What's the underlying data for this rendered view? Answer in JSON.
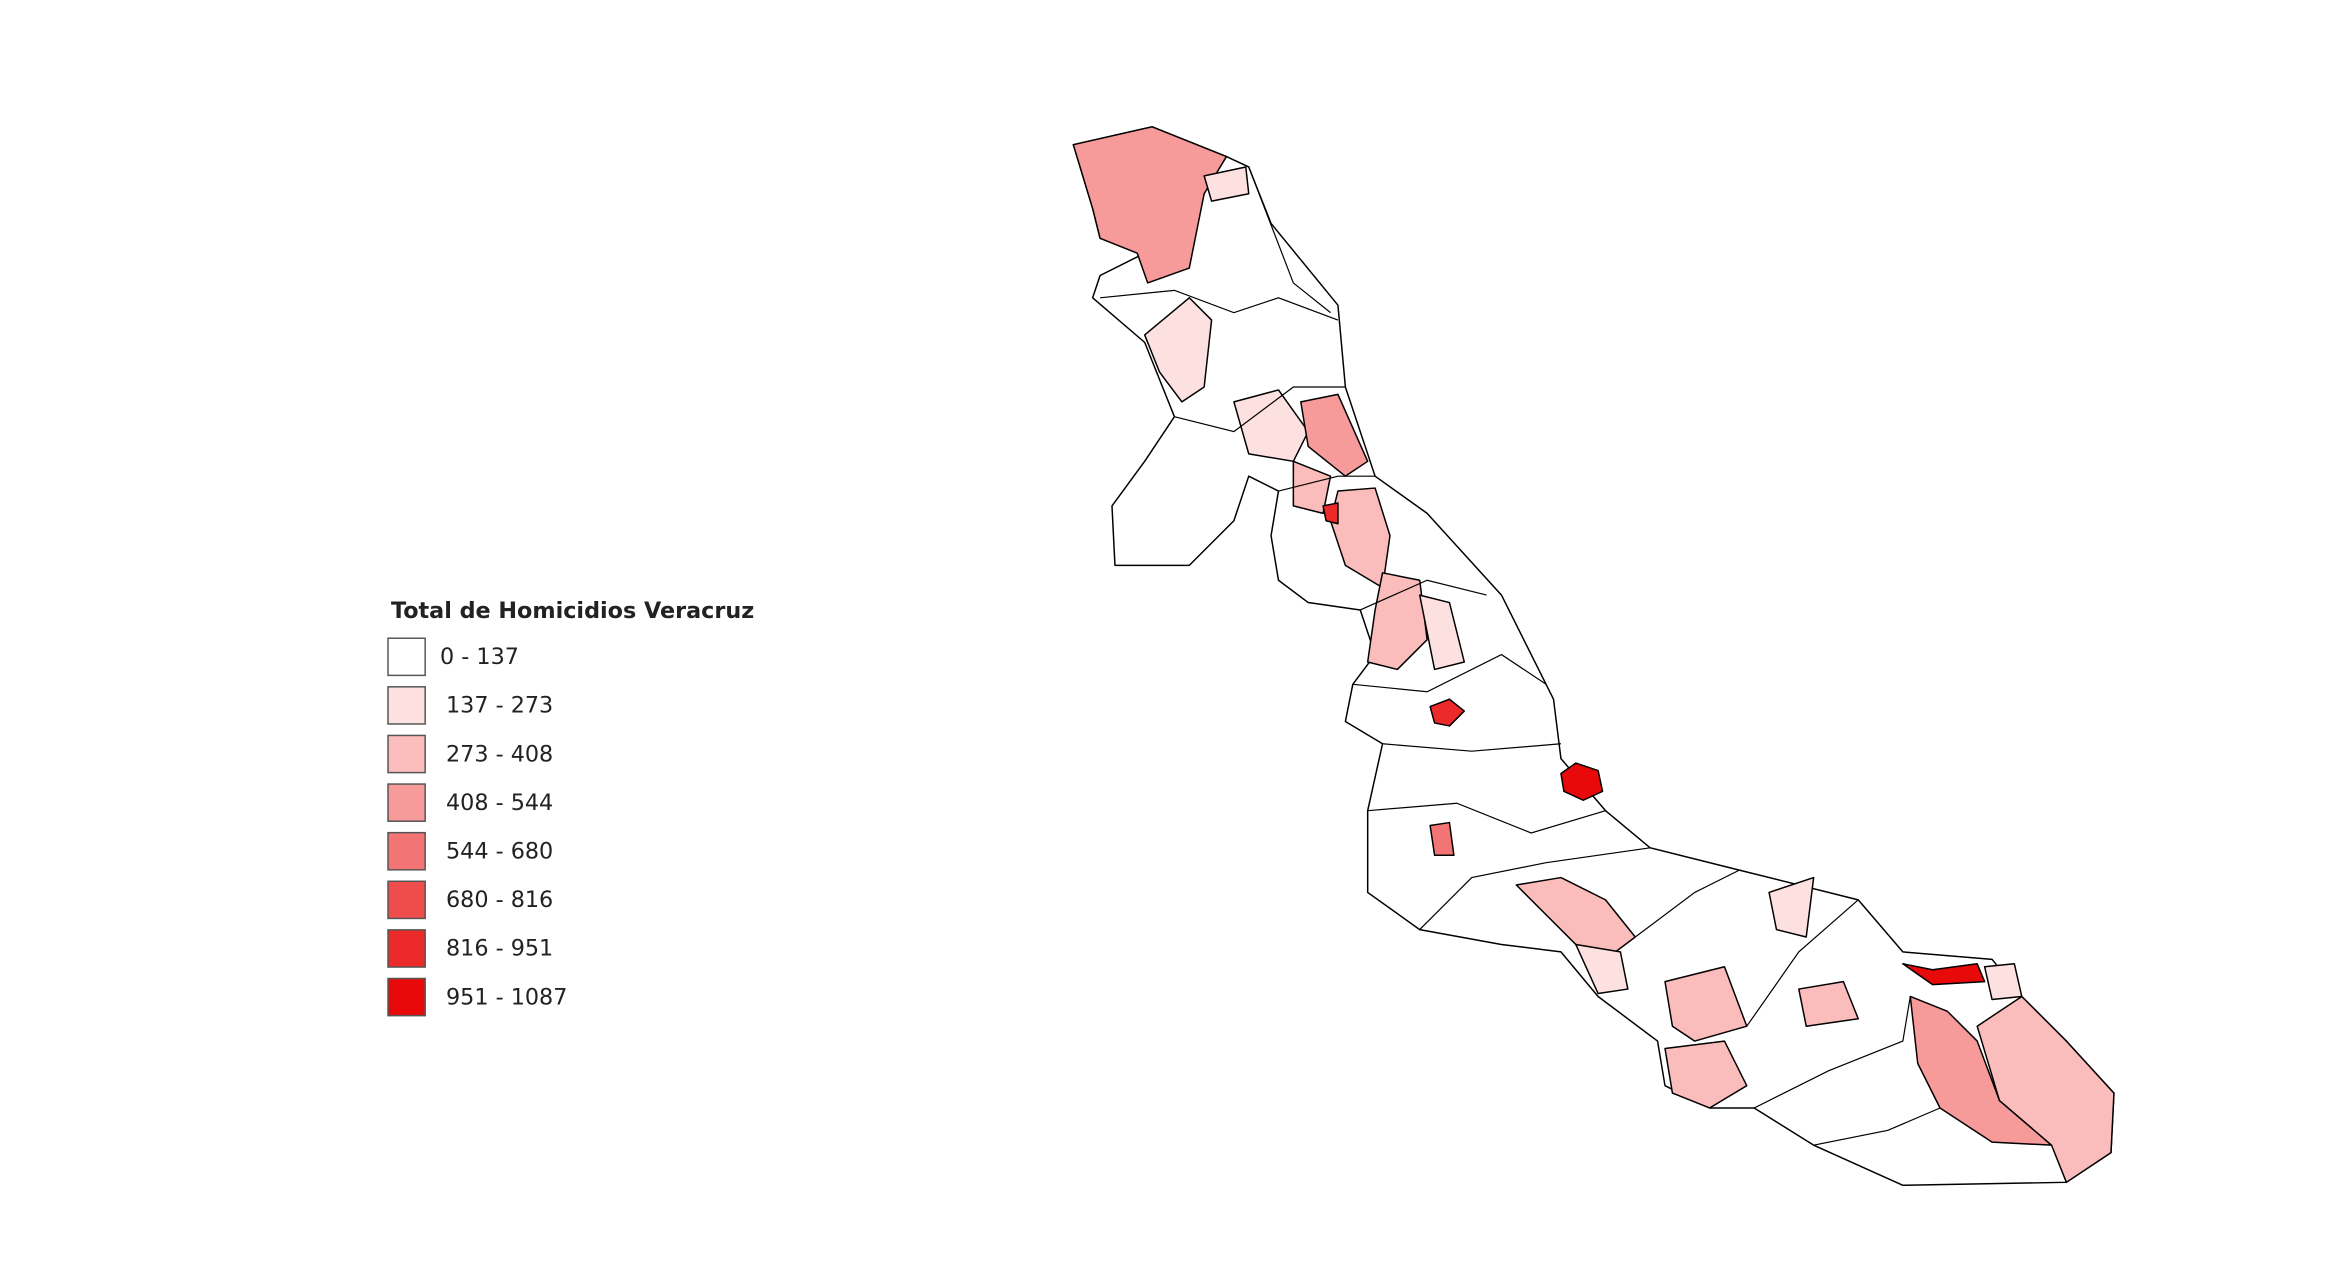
{
  "legend": {
    "title": "Total de Homicidios Veracruz",
    "items": [
      {
        "label": "0 - 137",
        "color": "#ffffff"
      },
      {
        "label": "137 - 273",
        "color": "#fde0e0"
      },
      {
        "label": "273 - 408",
        "color": "#fbbcbc"
      },
      {
        "label": "408 - 544",
        "color": "#f79a9a"
      },
      {
        "label": "544 - 680",
        "color": "#f37474"
      },
      {
        "label": "680 - 816",
        "color": "#ef4c4c"
      },
      {
        "label": "816 - 951",
        "color": "#ec2a2a"
      },
      {
        "label": "951 - 1087",
        "color": "#e80a0a"
      }
    ]
  }
}
